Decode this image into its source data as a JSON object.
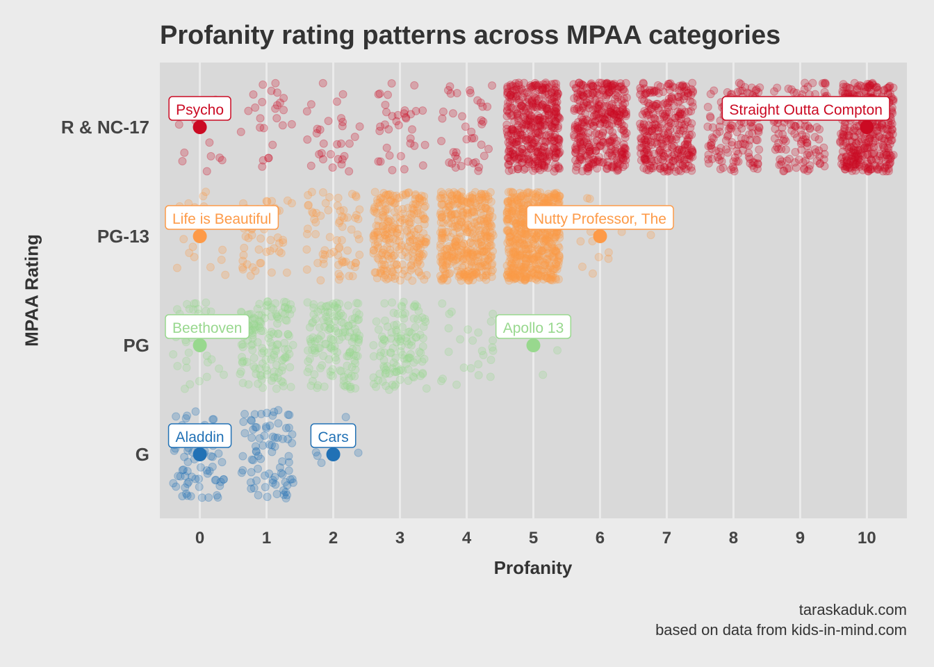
{
  "chart_data": {
    "type": "scatter",
    "subtype": "jittered strip plot",
    "title": "Profanity rating patterns across MPAA categories",
    "xlabel": "Profanity",
    "ylabel": "MPAA Rating",
    "xlim": [
      -0.6,
      10.6
    ],
    "x_ticks": [
      "0",
      "1",
      "2",
      "3",
      "4",
      "5",
      "6",
      "7",
      "8",
      "9",
      "10"
    ],
    "categories": [
      "R & NC-17",
      "PG-13",
      "PG",
      "G"
    ],
    "grid": true,
    "series": [
      {
        "category": "R & NC-17",
        "color": "#cb0a23",
        "approx_counts_by_profanity": [
          15,
          25,
          30,
          35,
          40,
          400,
          350,
          300,
          150,
          120,
          400
        ],
        "highlighted": [
          {
            "label": "Psycho",
            "profanity": 0
          },
          {
            "label": "Straight Outta Compton",
            "profanity": 10
          }
        ]
      },
      {
        "category": "PG-13",
        "color": "#fd9a48",
        "approx_counts_by_profanity": [
          20,
          50,
          70,
          250,
          400,
          600,
          12,
          1,
          0,
          0,
          0
        ],
        "highlighted": [
          {
            "label": "Life is Beautiful",
            "profanity": 0
          },
          {
            "label": "Nutty Professor, The",
            "profanity": 6
          }
        ]
      },
      {
        "category": "PG",
        "color": "#98d88e",
        "approx_counts_by_profanity": [
          40,
          150,
          150,
          120,
          25,
          3,
          0,
          0,
          0,
          0,
          0
        ],
        "highlighted": [
          {
            "label": "Beethoven",
            "profanity": 0
          },
          {
            "label": "Apollo 13",
            "profanity": 5
          }
        ]
      },
      {
        "category": "G",
        "color": "#2171b5",
        "approx_counts_by_profanity": [
          70,
          80,
          6,
          0,
          0,
          0,
          0,
          0,
          0,
          0,
          0
        ],
        "highlighted": [
          {
            "label": "Aladdin",
            "profanity": 0
          },
          {
            "label": "Cars",
            "profanity": 2
          }
        ]
      }
    ],
    "colors": {
      "panel": "#d9d9d9",
      "background": "#ebebeb",
      "grid": "#ebebeb",
      "text": "#333333"
    }
  },
  "caption": {
    "line1": "taraskaduk.com",
    "line2": "based on data from kids-in-mind.com"
  }
}
